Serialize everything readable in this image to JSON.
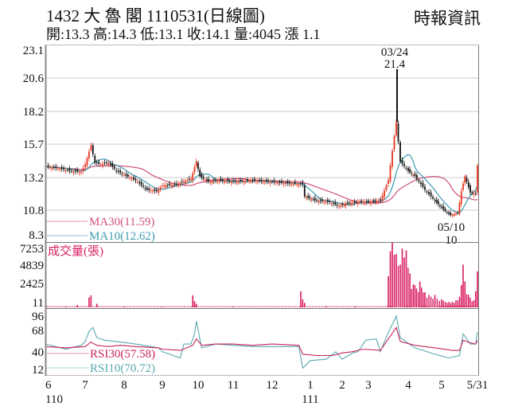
{
  "header": {
    "title": "1432 大 魯 閣 1110531(日線圖)",
    "ohlc": "開:13.3 高:14.3 低:13.1 收:14.1 量:4045 漲 1.1",
    "brand": "時報資訊"
  },
  "colors": {
    "up": "#e8341c",
    "down": "#111111",
    "ma30": "#d0507a",
    "ma10": "#3a9ab0",
    "volume": "#d81b60",
    "rsi30": "#c8245c",
    "rsi10": "#5aa8b0",
    "grid": "#cccccc",
    "axis": "#888888"
  },
  "chart_data": [
    {
      "type": "candlestick",
      "title": "1432 大 魯 閣 1110531(日線圖)",
      "panel": "price",
      "yticks": [
        23.1,
        20.6,
        18.2,
        15.7,
        13.2,
        10.8,
        8.3
      ],
      "ylim": [
        8.3,
        23.1
      ],
      "grid": true,
      "legend": [
        {
          "label": "MA30(11.59)",
          "color": "#d0507a"
        },
        {
          "label": "MA10(12.62)",
          "color": "#3a9ab0"
        }
      ],
      "annotations": [
        {
          "label": "03/24",
          "value": "21.4",
          "type": "high"
        },
        {
          "label": "05/10",
          "value": "10",
          "type": "low"
        }
      ],
      "last": {
        "open": 13.3,
        "high": 14.3,
        "low": 13.1,
        "close": 14.1,
        "volume": 4045,
        "change": 1.1
      },
      "close_series": [
        {
          "m": 0.0,
          "c": 14.0
        },
        {
          "m": 0.3,
          "c": 13.9
        },
        {
          "m": 0.6,
          "c": 13.7
        },
        {
          "m": 0.9,
          "c": 13.6
        },
        {
          "m": 1.0,
          "c": 14.2
        },
        {
          "m": 1.15,
          "c": 15.6
        },
        {
          "m": 1.25,
          "c": 14.3
        },
        {
          "m": 1.4,
          "c": 14.2
        },
        {
          "m": 1.6,
          "c": 14.3
        },
        {
          "m": 1.8,
          "c": 13.7
        },
        {
          "m": 2.0,
          "c": 13.4
        },
        {
          "m": 2.3,
          "c": 13.0
        },
        {
          "m": 2.6,
          "c": 12.3
        },
        {
          "m": 2.85,
          "c": 12.2
        },
        {
          "m": 3.0,
          "c": 12.6
        },
        {
          "m": 3.4,
          "c": 12.7
        },
        {
          "m": 3.8,
          "c": 13.1
        },
        {
          "m": 3.95,
          "c": 14.4
        },
        {
          "m": 4.05,
          "c": 13.3
        },
        {
          "m": 4.3,
          "c": 12.9
        },
        {
          "m": 4.6,
          "c": 13.0
        },
        {
          "m": 5.0,
          "c": 12.9
        },
        {
          "m": 5.5,
          "c": 13.0
        },
        {
          "m": 5.9,
          "c": 12.9
        },
        {
          "m": 6.3,
          "c": 12.8
        },
        {
          "m": 6.8,
          "c": 12.7
        },
        {
          "m": 6.85,
          "c": 11.8
        },
        {
          "m": 7.2,
          "c": 11.5
        },
        {
          "m": 7.6,
          "c": 11.4
        },
        {
          "m": 7.9,
          "c": 11.1
        },
        {
          "m": 8.2,
          "c": 11.3
        },
        {
          "m": 8.6,
          "c": 11.4
        },
        {
          "m": 9.0,
          "c": 11.4
        },
        {
          "m": 9.3,
          "c": 11.5
        },
        {
          "m": 9.5,
          "c": 13.0
        },
        {
          "m": 9.6,
          "c": 15.2
        },
        {
          "m": 9.7,
          "c": 17.4
        },
        {
          "m": 9.8,
          "c": 14.4
        },
        {
          "m": 10.0,
          "c": 13.7
        },
        {
          "m": 10.2,
          "c": 13.3
        },
        {
          "m": 10.5,
          "c": 12.3
        },
        {
          "m": 10.8,
          "c": 11.5
        },
        {
          "m": 11.0,
          "c": 11.0
        },
        {
          "m": 11.25,
          "c": 10.3
        },
        {
          "m": 11.45,
          "c": 10.5
        },
        {
          "m": 11.55,
          "c": 12.2
        },
        {
          "m": 11.65,
          "c": 13.3
        },
        {
          "m": 11.8,
          "c": 12.1
        },
        {
          "m": 11.95,
          "c": 12.0
        },
        {
          "m": 12.0,
          "c": 14.1
        }
      ]
    },
    {
      "type": "bar",
      "panel": "volume",
      "title": "成交量(張)",
      "yticks": [
        7253,
        4839,
        2425,
        11
      ],
      "ylim": [
        11,
        7253
      ],
      "bars": [
        {
          "m": 0.0,
          "v": 100
        },
        {
          "m": 0.5,
          "v": 120
        },
        {
          "m": 0.8,
          "v": 250
        },
        {
          "m": 1.1,
          "v": 1100
        },
        {
          "m": 1.15,
          "v": 1350
        },
        {
          "m": 1.3,
          "v": 400
        },
        {
          "m": 2.0,
          "v": 120
        },
        {
          "m": 3.0,
          "v": 90
        },
        {
          "m": 3.85,
          "v": 1350
        },
        {
          "m": 3.9,
          "v": 700
        },
        {
          "m": 3.95,
          "v": 400
        },
        {
          "m": 5.0,
          "v": 80
        },
        {
          "m": 6.75,
          "v": 1800
        },
        {
          "m": 6.8,
          "v": 900
        },
        {
          "m": 6.85,
          "v": 500
        },
        {
          "m": 7.5,
          "v": 120
        },
        {
          "m": 8.5,
          "v": 100
        },
        {
          "m": 9.5,
          "v": 3500
        },
        {
          "m": 9.55,
          "v": 6300
        },
        {
          "m": 9.6,
          "v": 7253
        },
        {
          "m": 9.65,
          "v": 5900
        },
        {
          "m": 9.7,
          "v": 6000
        },
        {
          "m": 9.8,
          "v": 4800
        },
        {
          "m": 9.85,
          "v": 6600
        },
        {
          "m": 9.9,
          "v": 5600
        },
        {
          "m": 9.95,
          "v": 6400
        },
        {
          "m": 10.05,
          "v": 3800
        },
        {
          "m": 10.2,
          "v": 2500
        },
        {
          "m": 10.35,
          "v": 2900
        },
        {
          "m": 10.5,
          "v": 1700
        },
        {
          "m": 10.8,
          "v": 1400
        },
        {
          "m": 11.0,
          "v": 900
        },
        {
          "m": 11.3,
          "v": 600
        },
        {
          "m": 11.5,
          "v": 1200
        },
        {
          "m": 11.55,
          "v": 2500
        },
        {
          "m": 11.6,
          "v": 4800
        },
        {
          "m": 11.65,
          "v": 2900
        },
        {
          "m": 11.75,
          "v": 1400
        },
        {
          "m": 11.9,
          "v": 800
        },
        {
          "m": 11.95,
          "v": 1800
        },
        {
          "m": 12.0,
          "v": 4045
        }
      ]
    },
    {
      "type": "line",
      "panel": "rsi",
      "yticks": [
        96,
        68,
        40,
        12
      ],
      "ylim": [
        12,
        96
      ],
      "legend": [
        {
          "label": "RSI30(57.58)",
          "color": "#c8245c"
        },
        {
          "label": "RSI10(70.72)",
          "color": "#5aa8b0"
        }
      ],
      "series": [
        {
          "name": "RSI30",
          "points": [
            [
              0.0,
              48
            ],
            [
              0.5,
              46
            ],
            [
              1.0,
              48
            ],
            [
              1.15,
              55
            ],
            [
              1.3,
              50
            ],
            [
              1.6,
              48
            ],
            [
              1.9,
              50
            ],
            [
              2.3,
              48
            ],
            [
              2.9,
              46
            ],
            [
              3.0,
              44
            ],
            [
              3.5,
              42
            ],
            [
              3.85,
              50
            ],
            [
              3.95,
              60
            ],
            [
              4.1,
              50
            ],
            [
              4.5,
              52
            ],
            [
              5.0,
              52
            ],
            [
              5.5,
              50
            ],
            [
              6.0,
              52
            ],
            [
              6.7,
              50
            ],
            [
              6.8,
              36
            ],
            [
              7.2,
              34
            ],
            [
              7.7,
              34
            ],
            [
              8.0,
              38
            ],
            [
              8.4,
              40
            ],
            [
              8.8,
              44
            ],
            [
              9.3,
              42
            ],
            [
              9.5,
              60
            ],
            [
              9.7,
              78
            ],
            [
              9.8,
              56
            ],
            [
              10.2,
              50
            ],
            [
              10.8,
              46
            ],
            [
              11.3,
              42
            ],
            [
              11.5,
              42
            ],
            [
              11.6,
              58
            ],
            [
              11.8,
              54
            ],
            [
              11.95,
              52
            ],
            [
              12.0,
              57.58
            ]
          ]
        },
        {
          "name": "RSI10",
          "points": [
            [
              0.0,
              52
            ],
            [
              0.5,
              44
            ],
            [
              0.9,
              50
            ],
            [
              1.0,
              56
            ],
            [
              1.1,
              72
            ],
            [
              1.2,
              78
            ],
            [
              1.3,
              62
            ],
            [
              1.5,
              58
            ],
            [
              1.8,
              56
            ],
            [
              2.3,
              52
            ],
            [
              2.9,
              46
            ],
            [
              3.0,
              40
            ],
            [
              3.5,
              30
            ],
            [
              3.6,
              52
            ],
            [
              3.8,
              52
            ],
            [
              3.9,
              68
            ],
            [
              3.95,
              88
            ],
            [
              4.1,
              46
            ],
            [
              4.5,
              52
            ],
            [
              5.0,
              50
            ],
            [
              5.5,
              48
            ],
            [
              6.0,
              48
            ],
            [
              6.7,
              48
            ],
            [
              6.8,
              14
            ],
            [
              7.0,
              26
            ],
            [
              7.5,
              28
            ],
            [
              7.8,
              40
            ],
            [
              8.0,
              28
            ],
            [
              8.4,
              38
            ],
            [
              8.6,
              40
            ],
            [
              8.9,
              58
            ],
            [
              9.2,
              60
            ],
            [
              9.3,
              40
            ],
            [
              9.5,
              70
            ],
            [
              9.7,
              96
            ],
            [
              9.8,
              62
            ],
            [
              10.2,
              46
            ],
            [
              10.8,
              36
            ],
            [
              11.2,
              30
            ],
            [
              11.5,
              34
            ],
            [
              11.6,
              68
            ],
            [
              11.8,
              52
            ],
            [
              11.95,
              52
            ],
            [
              12.0,
              70.72
            ]
          ]
        }
      ]
    }
  ],
  "xaxis": {
    "ticks": [
      {
        "label": "6",
        "m": 0
      },
      {
        "label": "7",
        "m": 1
      },
      {
        "label": "8",
        "m": 2
      },
      {
        "label": "9",
        "m": 3
      },
      {
        "label": "10",
        "m": 4
      },
      {
        "label": "11",
        "m": 5
      },
      {
        "label": "12",
        "m": 6
      },
      {
        "label": "1",
        "m": 7
      },
      {
        "label": "2",
        "m": 8
      },
      {
        "label": "3",
        "m": 9
      },
      {
        "label": "4",
        "m": 10
      },
      {
        "label": "5",
        "m": 11
      },
      {
        "label": "5/31",
        "m": 12
      }
    ],
    "year_labels": [
      {
        "label": "110",
        "m": 0
      },
      {
        "label": "111",
        "m": 7
      }
    ]
  }
}
